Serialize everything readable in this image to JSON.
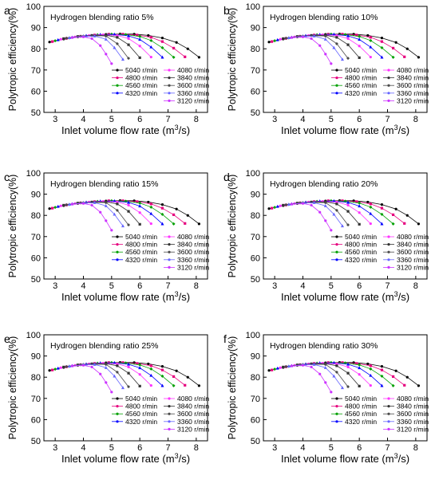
{
  "figure": {
    "xlabel": "Inlet volume flow rate (m",
    "xlabel_sup": "3",
    "xlabel_tail": "/s)",
    "ylabel": "Polytropic efficiency(%)"
  },
  "legend_col1": [
    "5040 r/min",
    "4800 r/min",
    "4560 r/min",
    "4320 r/min"
  ],
  "legend_col2": [
    "4080 r/min",
    "3840 r/min",
    "3600 r/min",
    "3360 r/min",
    "3120 r/min"
  ],
  "series_colors": [
    "#000000",
    "#e6007e",
    "#00a000",
    "#0000ff",
    "#ff33ff",
    "#333333",
    "#4a4a4a",
    "#6666ff",
    "#cc33ff"
  ],
  "chart_data": [
    {
      "panel": "a",
      "title": "Hydrogen blending ratio 5%",
      "type": "line",
      "xlim": [
        2.6,
        8.4
      ],
      "ylim": [
        50,
        100
      ],
      "xticks": [
        3,
        4,
        5,
        6,
        7,
        8
      ],
      "yticks": [
        50,
        60,
        70,
        80,
        90,
        100
      ],
      "legend": "lower-right",
      "grid": false,
      "series_ref": "shared"
    },
    {
      "panel": "b",
      "title": "Hydrogen blending ratio 10%",
      "type": "line",
      "xlim": [
        2.6,
        8.4
      ],
      "ylim": [
        50,
        100
      ],
      "xticks": [
        3,
        4,
        5,
        6,
        7,
        8
      ],
      "yticks": [
        50,
        60,
        70,
        80,
        90,
        100
      ],
      "legend": "lower-right",
      "grid": false,
      "series_ref": "shared"
    },
    {
      "panel": "c",
      "title": "Hydrogen blending ratio 15%",
      "type": "line",
      "xlim": [
        2.6,
        8.4
      ],
      "ylim": [
        50,
        100
      ],
      "xticks": [
        3,
        4,
        5,
        6,
        7,
        8
      ],
      "yticks": [
        50,
        60,
        70,
        80,
        90,
        100
      ],
      "legend": "lower-right",
      "grid": false,
      "series_ref": "shared"
    },
    {
      "panel": "d",
      "title": "Hydrogen blending ratio 20%",
      "type": "line",
      "xlim": [
        2.6,
        8.4
      ],
      "ylim": [
        50,
        100
      ],
      "xticks": [
        3,
        4,
        5,
        6,
        7,
        8
      ],
      "yticks": [
        50,
        60,
        70,
        80,
        90,
        100
      ],
      "legend": "lower-right",
      "grid": false,
      "series_ref": "shared"
    },
    {
      "panel": "e",
      "title": "Hydrogen blending ratio 25%",
      "type": "line",
      "xlim": [
        2.6,
        8.4
      ],
      "ylim": [
        50,
        100
      ],
      "xticks": [
        3,
        4,
        5,
        6,
        7,
        8
      ],
      "yticks": [
        50,
        60,
        70,
        80,
        90,
        100
      ],
      "legend": "lower-right",
      "grid": false,
      "series_ref": "shared"
    },
    {
      "panel": "f",
      "title": "Hydrogen blending ratio 30%",
      "type": "line",
      "xlim": [
        2.6,
        8.4
      ],
      "ylim": [
        50,
        100
      ],
      "xticks": [
        3,
        4,
        5,
        6,
        7,
        8
      ],
      "yticks": [
        50,
        60,
        70,
        80,
        90,
        100
      ],
      "legend": "lower-right",
      "grid": false,
      "series_ref": "shared"
    }
  ],
  "series": [
    {
      "name": "5040 r/min",
      "x": [
        2.8,
        3.3,
        3.8,
        4.3,
        4.8,
        5.3,
        5.8,
        6.3,
        6.8,
        7.3,
        7.7,
        8.1
      ],
      "y": [
        83.2,
        84.6,
        85.6,
        86.3,
        86.8,
        87.0,
        86.9,
        86.3,
        85.1,
        83.0,
        80.0,
        76.0
      ]
    },
    {
      "name": "4800 r/min",
      "x": [
        2.9,
        3.4,
        3.9,
        4.4,
        4.9,
        5.4,
        5.9,
        6.4,
        6.8,
        7.2,
        7.6
      ],
      "y": [
        83.4,
        84.9,
        85.9,
        86.5,
        86.9,
        86.9,
        86.5,
        85.4,
        83.4,
        80.3,
        76.2
      ]
    },
    {
      "name": "4560 r/min",
      "x": [
        3.0,
        3.5,
        4.0,
        4.5,
        5.0,
        5.5,
        6.0,
        6.4,
        6.8,
        7.2
      ],
      "y": [
        83.8,
        85.1,
        86.0,
        86.6,
        86.9,
        86.7,
        85.8,
        83.9,
        80.5,
        76.0
      ]
    },
    {
      "name": "4320 r/min",
      "x": [
        3.1,
        3.6,
        4.1,
        4.6,
        5.1,
        5.6,
        6.0,
        6.4,
        6.8
      ],
      "y": [
        84.2,
        85.4,
        86.2,
        86.7,
        86.8,
        86.1,
        84.4,
        80.8,
        76.0
      ]
    },
    {
      "name": "4080 r/min",
      "x": [
        3.2,
        3.7,
        4.2,
        4.7,
        5.2,
        5.6,
        6.0,
        6.4
      ],
      "y": [
        84.5,
        85.6,
        86.3,
        86.6,
        86.3,
        84.8,
        81.3,
        76.1
      ]
    },
    {
      "name": "3840 r/min",
      "x": [
        3.3,
        3.8,
        4.3,
        4.8,
        5.2,
        5.6,
        6.0
      ],
      "y": [
        84.8,
        85.8,
        86.3,
        86.4,
        85.4,
        81.9,
        75.8
      ]
    },
    {
      "name": "3600 r/min",
      "x": [
        3.4,
        3.9,
        4.4,
        4.8,
        5.2,
        5.6
      ],
      "y": [
        85.0,
        85.9,
        86.2,
        86.0,
        82.4,
        75.5
      ]
    },
    {
      "name": "3360 r/min",
      "x": [
        3.5,
        4.0,
        4.4,
        4.8,
        5.1,
        5.4
      ],
      "y": [
        85.2,
        85.9,
        86.0,
        84.5,
        80.5,
        75.0
      ]
    },
    {
      "name": "3120 r/min",
      "x": [
        3.6,
        4.0,
        4.3,
        4.6,
        4.8,
        5.0
      ],
      "y": [
        85.3,
        85.6,
        84.8,
        81.5,
        77.5,
        73.0
      ]
    }
  ]
}
